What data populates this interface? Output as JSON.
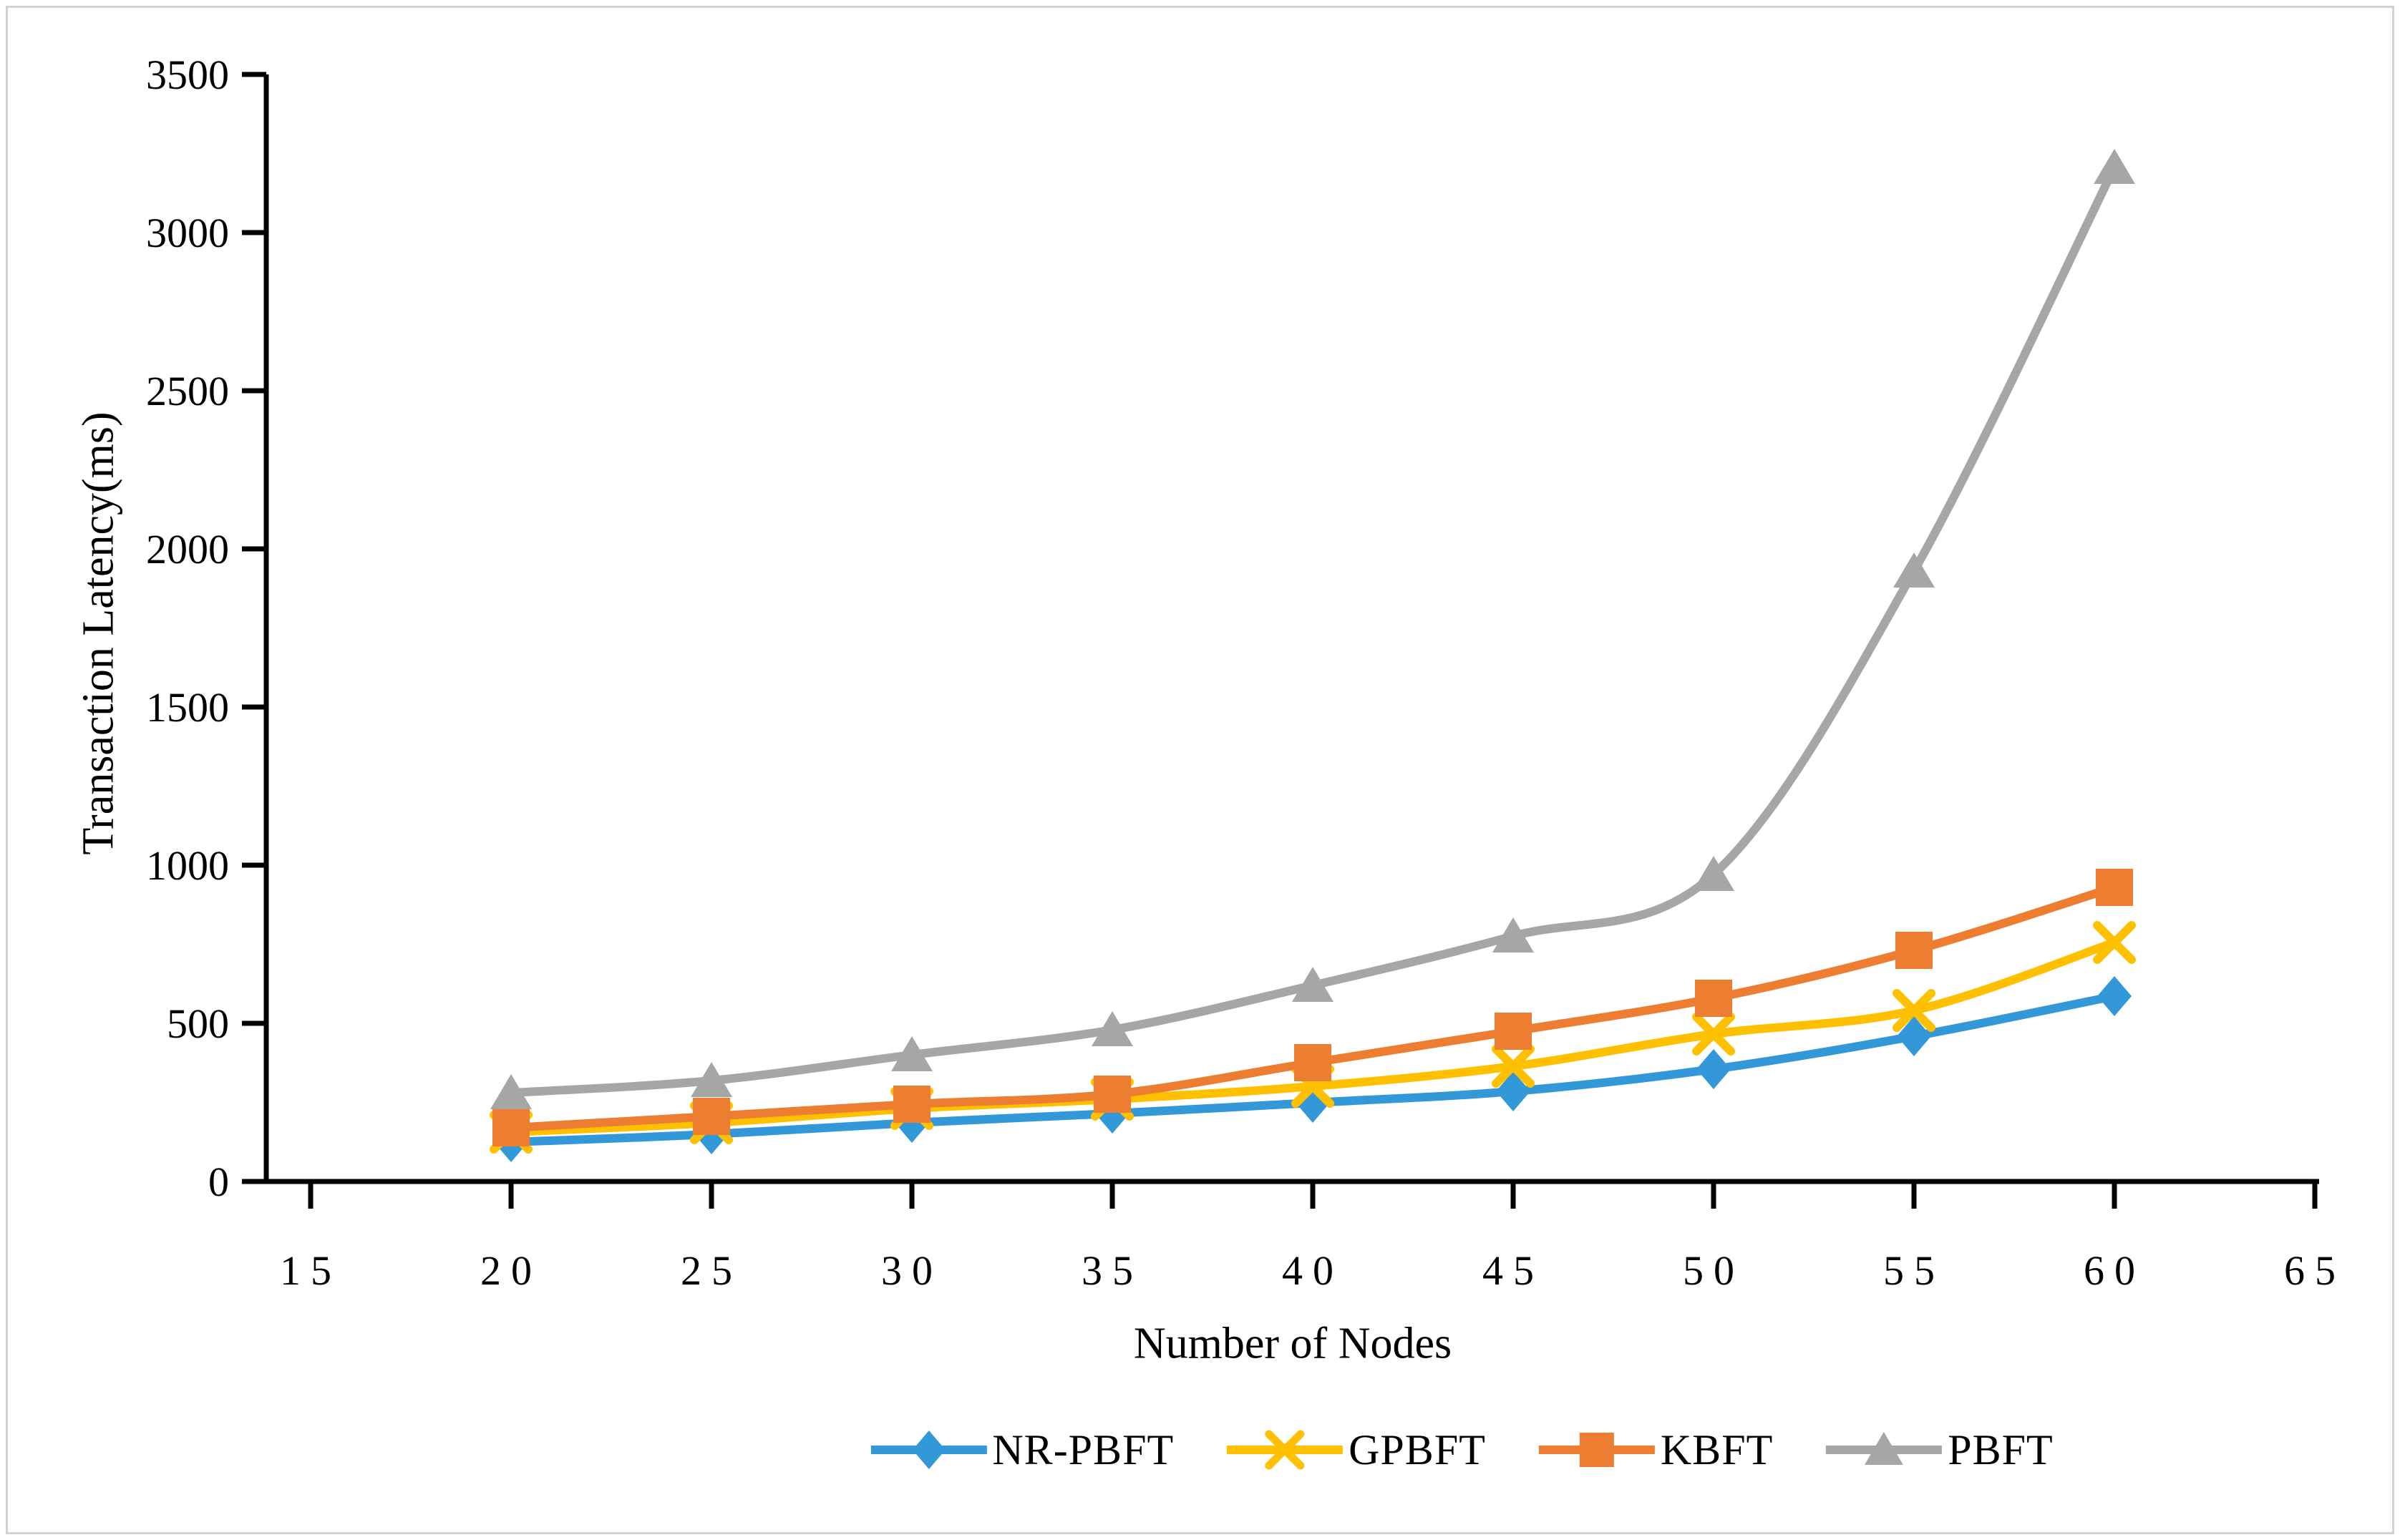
{
  "chart_data": {
    "type": "line",
    "title": "",
    "xlabel": "Number of Nodes",
    "ylabel": "Transaction Latency(ms)",
    "x": [
      20,
      25,
      30,
      35,
      40,
      45,
      50,
      55,
      60
    ],
    "xlim": [
      15,
      65
    ],
    "ylim": [
      0,
      3500
    ],
    "x_ticks": [
      15,
      20,
      25,
      30,
      35,
      40,
      45,
      50,
      55,
      60,
      65
    ],
    "y_ticks": [
      0,
      500,
      1000,
      1500,
      2000,
      2500,
      3000,
      3500
    ],
    "grid": false,
    "line_style": "smooth",
    "legend_position": "bottom",
    "axis_color": "#000000",
    "series": [
      {
        "name": "NR-PBFT",
        "color": "#3398D8",
        "marker": "diamond",
        "values": [
          125,
          150,
          185,
          215,
          250,
          285,
          355,
          460,
          585
        ]
      },
      {
        "name": "GPBFT",
        "color": "#FFC000",
        "marker": "x",
        "values": [
          155,
          185,
          230,
          260,
          300,
          365,
          465,
          540,
          755
        ]
      },
      {
        "name": "KBFT",
        "color": "#ED7D31",
        "marker": "square",
        "values": [
          170,
          205,
          245,
          275,
          375,
          475,
          580,
          730,
          930
        ]
      },
      {
        "name": "PBFT",
        "color": "#A6A6A6",
        "marker": "triangle",
        "values": [
          280,
          320,
          400,
          480,
          620,
          775,
          970,
          1930,
          3205
        ]
      }
    ]
  }
}
